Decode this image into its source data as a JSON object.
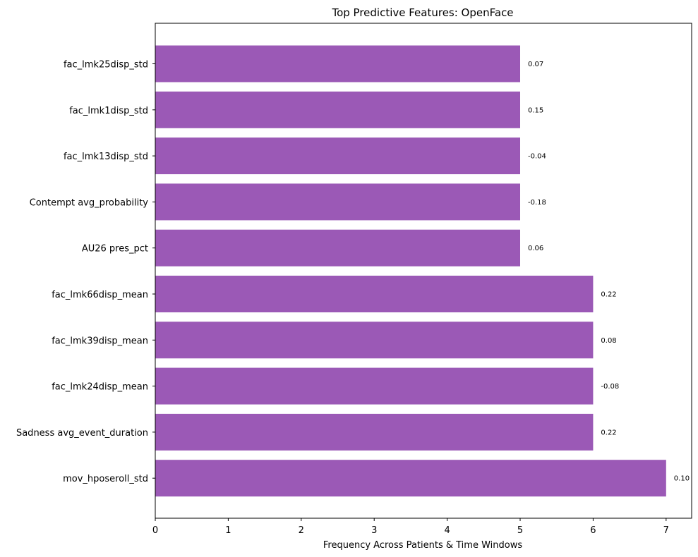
{
  "chart_data": {
    "type": "bar",
    "orientation": "horizontal",
    "title": "Top Predictive Features: OpenFace",
    "xlabel": "Frequency Across Patients & Time Windows",
    "ylabel": "",
    "xlim": [
      0,
      7.35
    ],
    "xticks": [
      "0",
      "1",
      "2",
      "3",
      "4",
      "5",
      "6",
      "7"
    ],
    "bar_color": "#9b59b6",
    "grid": false,
    "categories": [
      "fac_lmk25disp_std",
      "fac_lmk1disp_std",
      "fac_lmk13disp_std",
      "Contempt avg_probability",
      "AU26 pres_pct",
      "fac_lmk66disp_mean",
      "fac_lmk39disp_mean",
      "fac_lmk24disp_mean",
      "Sadness avg_event_duration",
      "mov_hposeroll_std"
    ],
    "values": [
      5,
      5,
      5,
      5,
      5,
      6,
      6,
      6,
      6,
      7
    ],
    "data_labels": [
      "0.07",
      "0.15",
      "-0.04",
      "-0.18",
      "0.06",
      "0.22",
      "0.08",
      "-0.08",
      "0.22",
      "0.10"
    ]
  }
}
